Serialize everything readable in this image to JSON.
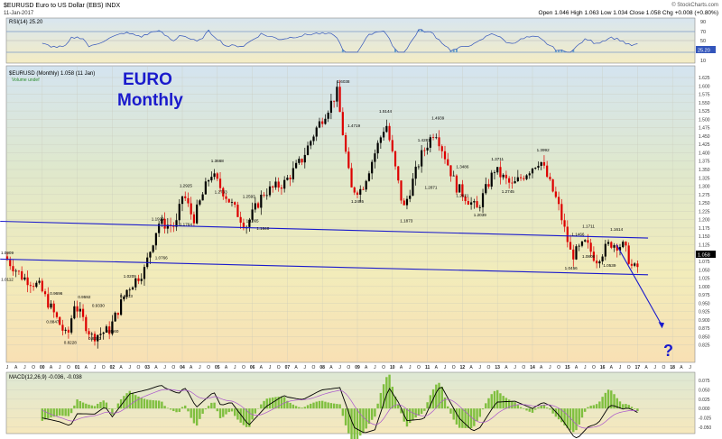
{
  "header": {
    "symbol_title": "$EURUSD Euro to US Dollar (EBS) INDX",
    "date": "11-Jan-2017",
    "quote": "Open 1.046  High 1.063  Low 1.034  Close 1.058  Chg +0.008 (+0.80%)",
    "watermark": "© StockCharts.com"
  },
  "rsi_panel": {
    "label": "RSI(14) 25.20",
    "levels": [
      "90",
      "70",
      "50",
      "30",
      "10"
    ],
    "current": "25.20"
  },
  "price_panel": {
    "legend_line1": "$EURUSD (Monthly) 1.058 (11 Jan)",
    "legend_line2": "Volume undef",
    "annotation_line1": "EURO",
    "annotation_line2": "Monthly",
    "question_mark": "?",
    "last_price_label": "1.058"
  },
  "macd_panel": {
    "label": "MACD(12,26,9) -0.036, -0.038",
    "ticks": [
      "0.075",
      "0.050",
      "0.025",
      "0.000",
      "-0.025",
      "-0.050"
    ]
  },
  "colors": {
    "up_candle": "#000000",
    "down_candle": "#dd0000",
    "trendline": "#1a1acc",
    "rsi_line": "#3355bb",
    "macd_line": "#000000",
    "signal_line": "#aa55cc",
    "histogram": "#7fbf3f",
    "annotation": "#1a1acc"
  },
  "chart_data": {
    "type": "candlestick",
    "ylim": [
      0.8,
      1.625
    ],
    "y_ticks": [
      "1.625",
      "1.600",
      "1.575",
      "1.550",
      "1.525",
      "1.500",
      "1.475",
      "1.450",
      "1.425",
      "1.400",
      "1.375",
      "1.350",
      "1.325",
      "1.300",
      "1.275",
      "1.250",
      "1.225",
      "1.200",
      "1.175",
      "1.150",
      "1.125",
      "1.100",
      "1.075",
      "1.050",
      "1.025",
      "1.000",
      "0.975",
      "0.950",
      "0.925",
      "0.900",
      "0.875",
      "0.850",
      "0.825"
    ],
    "year_labels": [
      "00",
      "01",
      "02",
      "03",
      "04",
      "05",
      "06",
      "07",
      "08",
      "09",
      "10",
      "11",
      "12",
      "13",
      "14",
      "15",
      "16",
      "17",
      "18"
    ],
    "point_labels": [
      {
        "t": 1999.0,
        "v": 1.0112,
        "text": "1.0112"
      },
      {
        "t": 1999.0,
        "v": 1.0909,
        "text": "1.0909"
      },
      {
        "t": 2000.3,
        "v": 0.8847,
        "text": "0.8847"
      },
      {
        "t": 2000.4,
        "v": 0.9696,
        "text": "0.9696"
      },
      {
        "t": 2000.8,
        "v": 0.8228,
        "text": "0.8228"
      },
      {
        "t": 2001.2,
        "v": 0.9592,
        "text": "0.9592"
      },
      {
        "t": 2001.5,
        "v": 0.8352,
        "text": "0.8352"
      },
      {
        "t": 2001.6,
        "v": 0.933,
        "text": "0.9330"
      },
      {
        "t": 2002.0,
        "v": 0.856,
        "text": "0.8560"
      },
      {
        "t": 2002.4,
        "v": 0.9613,
        "text": "0.9613"
      },
      {
        "t": 2002.5,
        "v": 1.0209,
        "text": "1.0209"
      },
      {
        "t": 2003.4,
        "v": 1.0766,
        "text": "1.0766"
      },
      {
        "t": 2003.3,
        "v": 1.1929,
        "text": "1.1929"
      },
      {
        "t": 2004.1,
        "v": 1.1764,
        "text": "1.1764"
      },
      {
        "t": 2004.1,
        "v": 1.2925,
        "text": "1.2925"
      },
      {
        "t": 2005.0,
        "v": 1.3668,
        "text": "1.3668"
      },
      {
        "t": 2005.1,
        "v": 1.2733,
        "text": "1.2733"
      },
      {
        "t": 2005.9,
        "v": 1.2593,
        "text": "1.2593"
      },
      {
        "t": 2006.0,
        "v": 1.1865,
        "text": "1.1865"
      },
      {
        "t": 2006.3,
        "v": 1.164,
        "text": "1.1640"
      },
      {
        "t": 2008.6,
        "v": 1.6038,
        "text": "1.6038"
      },
      {
        "t": 2008.9,
        "v": 1.4719,
        "text": "1.4719"
      },
      {
        "t": 2009.0,
        "v": 1.2455,
        "text": "1.2455"
      },
      {
        "t": 2009.8,
        "v": 1.5144,
        "text": "1.5144"
      },
      {
        "t": 2010.4,
        "v": 1.1873,
        "text": "1.1873"
      },
      {
        "t": 2010.9,
        "v": 1.4281,
        "text": "1.4281"
      },
      {
        "t": 2011.3,
        "v": 1.4939,
        "text": "1.4939"
      },
      {
        "t": 2011.1,
        "v": 1.2871,
        "text": "1.2871"
      },
      {
        "t": 2012.0,
        "v": 1.3486,
        "text": "1.3486"
      },
      {
        "t": 2012.0,
        "v": 1.2621,
        "text": "1.2621"
      },
      {
        "t": 2012.5,
        "v": 1.2039,
        "text": "1.2039"
      },
      {
        "t": 2013.0,
        "v": 1.3711,
        "text": "1.3711"
      },
      {
        "t": 2013.3,
        "v": 1.2745,
        "text": "1.2745"
      },
      {
        "t": 2014.3,
        "v": 1.3992,
        "text": "1.3992"
      },
      {
        "t": 2015.1,
        "v": 1.0456,
        "text": "1.0456"
      },
      {
        "t": 2015.3,
        "v": 1.1466,
        "text": "1.1466"
      },
      {
        "t": 2015.6,
        "v": 1.1711,
        "text": "1.1711"
      },
      {
        "t": 2015.6,
        "v": 1.0808,
        "text": "1.0808"
      },
      {
        "t": 2016.2,
        "v": 1.0539,
        "text": "1.0539"
      },
      {
        "t": 2016.4,
        "v": 1.1614,
        "text": "1.1614"
      }
    ],
    "trendlines": [
      {
        "name": "upper channel",
        "points": [
          [
            1998.8,
            1.195
          ],
          [
            2017.3,
            1.145
          ]
        ]
      },
      {
        "name": "lower channel",
        "points": [
          [
            1998.8,
            1.082
          ],
          [
            2017.3,
            1.035
          ]
        ]
      },
      {
        "name": "projection",
        "points": [
          [
            2016.4,
            1.125
          ],
          [
            2017.7,
            0.883
          ]
        ]
      }
    ],
    "pivots": [
      [
        1999.0,
        1.09
      ],
      [
        1999.5,
        1.03
      ],
      [
        2000.0,
        1.0
      ],
      [
        2000.8,
        0.845
      ],
      [
        2001.0,
        0.95
      ],
      [
        2001.5,
        0.85
      ],
      [
        2002.0,
        0.87
      ],
      [
        2002.5,
        0.99
      ],
      [
        2003.0,
        1.05
      ],
      [
        2003.4,
        1.19
      ],
      [
        2003.9,
        1.18
      ],
      [
        2004.1,
        1.28
      ],
      [
        2004.4,
        1.2
      ],
      [
        2004.9,
        1.34
      ],
      [
        2005.9,
        1.18
      ],
      [
        2006.4,
        1.28
      ],
      [
        2007.0,
        1.31
      ],
      [
        2007.5,
        1.38
      ],
      [
        2007.9,
        1.47
      ],
      [
        2008.5,
        1.58
      ],
      [
        2008.9,
        1.29
      ],
      [
        2009.2,
        1.29
      ],
      [
        2009.9,
        1.49
      ],
      [
        2010.4,
        1.23
      ],
      [
        2010.9,
        1.39
      ],
      [
        2011.3,
        1.47
      ],
      [
        2011.9,
        1.3
      ],
      [
        2012.5,
        1.23
      ],
      [
        2013.0,
        1.35
      ],
      [
        2013.5,
        1.3
      ],
      [
        2014.3,
        1.38
      ],
      [
        2014.8,
        1.25
      ],
      [
        2015.2,
        1.09
      ],
      [
        2015.6,
        1.13
      ],
      [
        2015.9,
        1.08
      ],
      [
        2016.3,
        1.13
      ],
      [
        2016.7,
        1.12
      ],
      [
        2016.95,
        1.05
      ],
      [
        2017.05,
        1.058
      ]
    ]
  }
}
